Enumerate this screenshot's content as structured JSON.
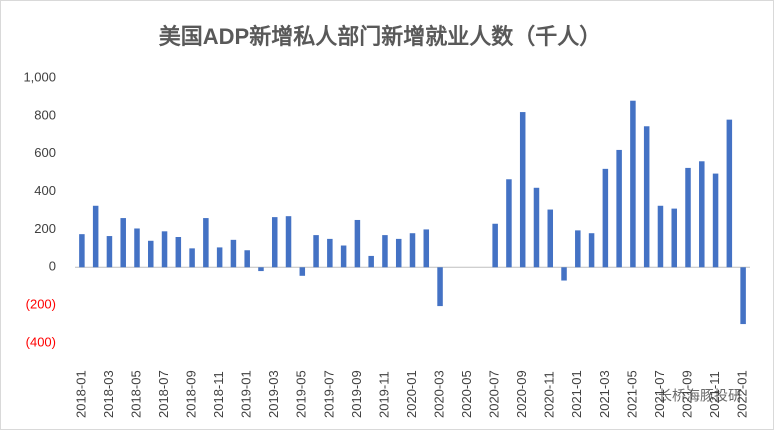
{
  "chart_data": {
    "type": "bar",
    "title": "美国ADP新增私人部门新增就业人数（千人）",
    "categories": [
      "2018-01",
      null,
      "2018-03",
      null,
      "2018-05",
      null,
      "2018-07",
      null,
      "2018-09",
      null,
      "2018-11",
      null,
      "2019-01",
      null,
      "2019-03",
      null,
      "2019-05",
      null,
      "2019-07",
      null,
      "2019-09",
      null,
      "2019-11",
      null,
      "2020-01",
      null,
      "2020-03",
      null,
      "2020-05",
      null,
      "2020-07",
      null,
      "2020-09",
      null,
      "2020-11",
      null,
      "2021-01",
      null,
      "2021-03",
      null,
      "2021-05",
      null,
      "2021-07",
      null,
      "2021-09",
      null,
      "2021-11",
      null,
      "2022-01"
    ],
    "values": [
      175,
      325,
      165,
      260,
      205,
      140,
      190,
      160,
      100,
      260,
      105,
      145,
      90,
      -20,
      265,
      270,
      -45,
      170,
      150,
      115,
      250,
      60,
      170,
      150,
      180,
      200,
      -205,
      null,
      null,
      null,
      230,
      465,
      820,
      420,
      305,
      -70,
      195,
      180,
      520,
      620,
      880,
      745,
      325,
      310,
      525,
      560,
      495,
      780,
      -300
    ],
    "color": "#4472c4",
    "ylim": [
      -400,
      1000
    ],
    "yticks": [
      {
        "value": -400,
        "label": "(400)"
      },
      {
        "value": -200,
        "label": "(200)"
      },
      0,
      200,
      400,
      600,
      800,
      {
        "value": 1000,
        "label": "1,000"
      }
    ],
    "negative_tick_color": "#ff0000",
    "grid": false,
    "watermark": "长桥海豚投研"
  }
}
